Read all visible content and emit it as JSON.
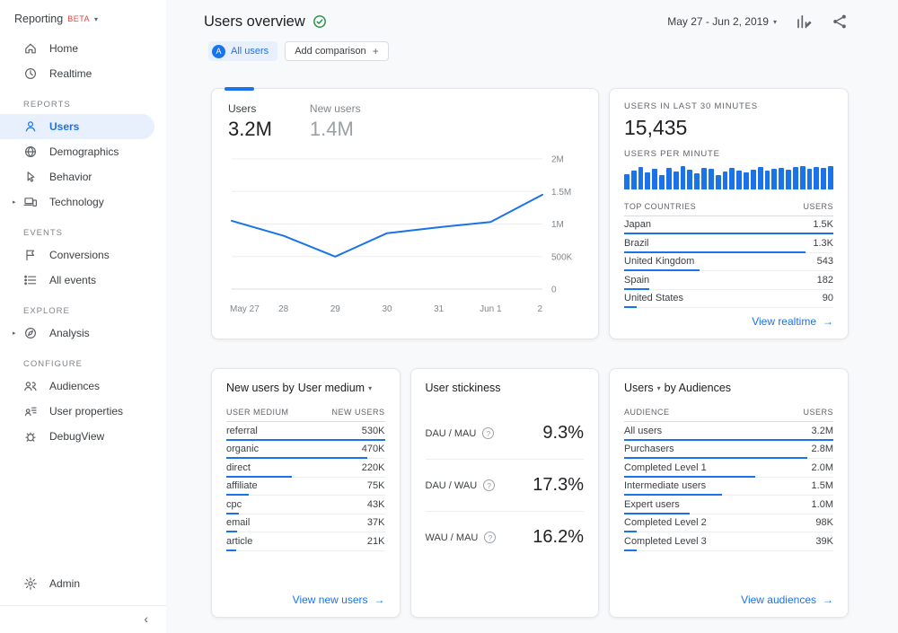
{
  "icons_glyphs": {
    "caret_down": "▾",
    "chevron_right": "▸",
    "arrow_right": "→",
    "collapse_chevron": "‹",
    "plus": "+",
    "help": "?"
  },
  "colors": {
    "accent_blue": "#1a73e8",
    "selected_bg": "#e8f0fe",
    "verified_green": "#1e8e3e",
    "beta_red": "#e8453c",
    "text_dark": "#202124",
    "text_gray": "#5f6368"
  },
  "sidebar": {
    "brand": "Reporting",
    "brand_badge": "BETA",
    "items_top": [
      {
        "label": "Home",
        "icon": "home-icon"
      },
      {
        "label": "Realtime",
        "icon": "clock-icon"
      }
    ],
    "sections": [
      {
        "title": "REPORTS",
        "items": [
          {
            "label": "Users",
            "icon": "user-icon",
            "active": true
          },
          {
            "label": "Demographics",
            "icon": "globe-icon"
          },
          {
            "label": "Behavior",
            "icon": "pointer-icon"
          },
          {
            "label": "Technology",
            "icon": "devices-icon",
            "expandable": true
          }
        ]
      },
      {
        "title": "EVENTS",
        "items": [
          {
            "label": "Conversions",
            "icon": "flag-icon"
          },
          {
            "label": "All events",
            "icon": "list-icon"
          }
        ]
      },
      {
        "title": "EXPLORE",
        "items": [
          {
            "label": "Analysis",
            "icon": "compass-icon",
            "expandable": true
          }
        ]
      },
      {
        "title": "CONFIGURE",
        "items": [
          {
            "label": "Audiences",
            "icon": "people-icon"
          },
          {
            "label": "User properties",
            "icon": "user-card-icon"
          },
          {
            "label": "DebugView",
            "icon": "bug-icon"
          }
        ]
      }
    ],
    "admin_label": "Admin"
  },
  "header": {
    "title": "Users overview",
    "date_range": "May 27 - Jun 2, 2019"
  },
  "filters": {
    "badge": "A",
    "all_users_label": "All users",
    "add_comparison_label": "Add comparison"
  },
  "users_chart_card": {
    "metrics": [
      {
        "label": "Users",
        "value": "3.2M"
      },
      {
        "label": "New users",
        "value": "1.4M"
      }
    ]
  },
  "realtime_card": {
    "overline": "USERS IN LAST 30 MINUTES",
    "value": "15,435",
    "per_minute_label": "USERS PER MINUTE",
    "table_col1": "TOP COUNTRIES",
    "table_col2": "USERS",
    "rows": [
      {
        "name": "Japan",
        "value": "1.5K",
        "num": 1500
      },
      {
        "name": "Brazil",
        "value": "1.3K",
        "num": 1300
      },
      {
        "name": "United Kingdom",
        "value": "543",
        "num": 543
      },
      {
        "name": "Spain",
        "value": "182",
        "num": 182
      },
      {
        "name": "United States",
        "value": "90",
        "num": 90
      }
    ],
    "link_label": "View realtime"
  },
  "new_users_card": {
    "title_prefix": "New users by",
    "dimension": "User medium",
    "table_col1": "USER MEDIUM",
    "table_col2": "NEW USERS",
    "rows": [
      {
        "name": "referral",
        "value": "530K",
        "num": 530000
      },
      {
        "name": "organic",
        "value": "470K",
        "num": 470000
      },
      {
        "name": "direct",
        "value": "220K",
        "num": 220000
      },
      {
        "name": "affiliate",
        "value": "75K",
        "num": 75000
      },
      {
        "name": "cpc",
        "value": "43K",
        "num": 43000
      },
      {
        "name": "email",
        "value": "37K",
        "num": 37000
      },
      {
        "name": "article",
        "value": "21K",
        "num": 21000
      }
    ],
    "link_label": "View new users"
  },
  "stickiness_card": {
    "title": "User stickiness",
    "metrics": [
      {
        "label": "DAU / MAU",
        "value": "9.3%"
      },
      {
        "label": "DAU / WAU",
        "value": "17.3%"
      },
      {
        "label": "WAU / MAU",
        "value": "16.2%"
      }
    ]
  },
  "audiences_card": {
    "metric_label": "Users",
    "title_suffix": "by Audiences",
    "table_col1": "AUDIENCE",
    "table_col2": "USERS",
    "rows": [
      {
        "name": "All users",
        "value": "3.2M",
        "num": 3200000
      },
      {
        "name": "Purchasers",
        "value": "2.8M",
        "num": 2800000
      },
      {
        "name": "Completed Level 1",
        "value": "2.0M",
        "num": 2000000
      },
      {
        "name": "Intermediate users",
        "value": "1.5M",
        "num": 1500000
      },
      {
        "name": "Expert users",
        "value": "1.0M",
        "num": 1000000
      },
      {
        "name": "Completed Level 2",
        "value": "98K",
        "num": 98000
      },
      {
        "name": "Completed Level 3",
        "value": "39K",
        "num": 39000
      }
    ],
    "link_label": "View audiences"
  },
  "chart_data": [
    {
      "type": "line",
      "title": "Users by day (May 27 - Jun 2, 2019)",
      "x": [
        "May 27",
        "28",
        "29",
        "30",
        "31",
        "Jun 1",
        "2"
      ],
      "series": [
        {
          "name": "Users",
          "values": [
            1050000,
            820000,
            500000,
            860000,
            950000,
            1030000,
            1450000
          ]
        }
      ],
      "ylim": [
        0,
        2000000
      ],
      "yticks": [
        0,
        500000,
        1000000,
        1500000,
        2000000
      ],
      "ytick_labels": [
        "0",
        "500K",
        "1M",
        "1.5M",
        "2M"
      ],
      "grid": true,
      "legend_position": "none"
    },
    {
      "type": "bar",
      "title": "Users per minute (last 30 minutes)",
      "values": [
        62,
        78,
        92,
        70,
        85,
        58,
        88,
        72,
        96,
        80,
        66,
        90,
        84,
        60,
        74,
        88,
        78,
        68,
        82,
        94,
        76,
        86,
        90,
        81,
        92,
        96,
        84,
        93,
        88,
        97
      ],
      "ylim": [
        0,
        100
      ]
    }
  ]
}
